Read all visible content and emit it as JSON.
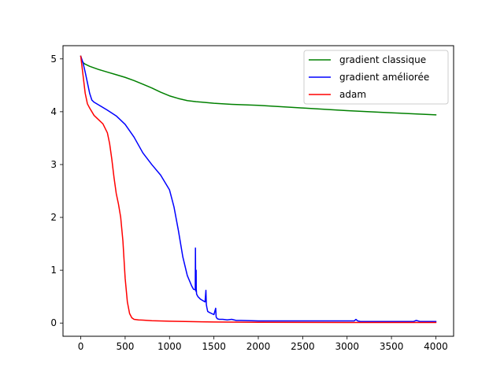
{
  "chart_data": {
    "type": "line",
    "title": "",
    "xlabel": "",
    "ylabel": "",
    "xlim": [
      -200,
      4200
    ],
    "ylim": [
      -0.25,
      5.25
    ],
    "xticks": [
      0,
      500,
      1000,
      1500,
      2000,
      2500,
      3000,
      3500,
      4000
    ],
    "yticks": [
      0,
      1,
      2,
      3,
      4,
      5
    ],
    "xtick_labels": [
      "0",
      "500",
      "1000",
      "1500",
      "2000",
      "2500",
      "3000",
      "3500",
      "4000"
    ],
    "ytick_labels": [
      "0",
      "1",
      "2",
      "3",
      "4",
      "5"
    ],
    "grid": false,
    "legend_position": "top-right",
    "series": [
      {
        "name": "gradient classique",
        "color": "#008000",
        "x": [
          0,
          10,
          25,
          50,
          100,
          200,
          300,
          400,
          500,
          600,
          700,
          800,
          900,
          1000,
          1100,
          1200,
          1300,
          1500,
          1700,
          2000,
          2500,
          3000,
          3500,
          4000
        ],
        "y": [
          5.05,
          4.98,
          4.93,
          4.9,
          4.86,
          4.8,
          4.75,
          4.7,
          4.65,
          4.59,
          4.52,
          4.45,
          4.37,
          4.3,
          4.25,
          4.21,
          4.19,
          4.16,
          4.14,
          4.12,
          4.07,
          4.02,
          3.98,
          3.94
        ]
      },
      {
        "name": "gradient améliorée",
        "color": "#0000ff",
        "x": [
          0,
          25,
          50,
          75,
          100,
          125,
          150,
          200,
          300,
          400,
          500,
          600,
          700,
          800,
          900,
          1000,
          1050,
          1100,
          1150,
          1200,
          1250,
          1270,
          1290,
          1292,
          1295,
          1298,
          1300,
          1301,
          1305,
          1310,
          1320,
          1350,
          1400,
          1410,
          1415,
          1420,
          1430,
          1450,
          1500,
          1520,
          1525,
          1530,
          1540,
          1560,
          1600,
          1650,
          1700,
          1750,
          1800,
          2000,
          2500,
          3000,
          3080,
          3100,
          3120,
          3150,
          3500,
          3750,
          3780,
          3800,
          3820,
          4000
        ],
        "y": [
          5.05,
          4.93,
          4.75,
          4.55,
          4.35,
          4.22,
          4.18,
          4.13,
          4.03,
          3.92,
          3.76,
          3.52,
          3.22,
          3.0,
          2.8,
          2.52,
          2.2,
          1.75,
          1.25,
          0.9,
          0.7,
          0.64,
          0.63,
          1.42,
          0.62,
          0.6,
          1.0,
          0.65,
          0.55,
          0.53,
          0.5,
          0.45,
          0.4,
          0.62,
          0.35,
          0.3,
          0.22,
          0.2,
          0.16,
          0.28,
          0.12,
          0.1,
          0.08,
          0.07,
          0.07,
          0.06,
          0.07,
          0.05,
          0.05,
          0.04,
          0.04,
          0.04,
          0.04,
          0.07,
          0.04,
          0.03,
          0.03,
          0.03,
          0.05,
          0.04,
          0.03,
          0.03
        ]
      },
      {
        "name": "adam",
        "color": "#ff0000",
        "x": [
          0,
          25,
          50,
          75,
          100,
          150,
          200,
          250,
          300,
          325,
          350,
          375,
          400,
          425,
          450,
          475,
          500,
          525,
          550,
          575,
          600,
          650,
          700,
          800,
          1000,
          1500,
          2000,
          3000,
          4000
        ],
        "y": [
          5.05,
          4.7,
          4.35,
          4.15,
          4.07,
          3.93,
          3.85,
          3.77,
          3.6,
          3.4,
          3.1,
          2.75,
          2.45,
          2.25,
          2.0,
          1.55,
          0.85,
          0.4,
          0.18,
          0.1,
          0.07,
          0.06,
          0.055,
          0.045,
          0.035,
          0.02,
          0.015,
          0.01,
          0.01
        ]
      }
    ]
  }
}
